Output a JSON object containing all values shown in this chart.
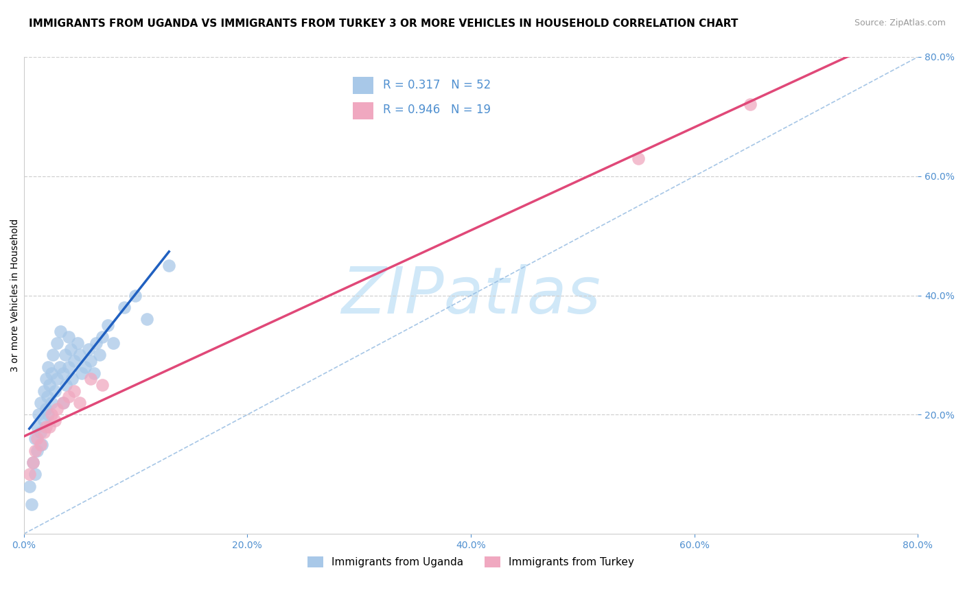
{
  "title": "IMMIGRANTS FROM UGANDA VS IMMIGRANTS FROM TURKEY 3 OR MORE VEHICLES IN HOUSEHOLD CORRELATION CHART",
  "source": "Source: ZipAtlas.com",
  "ylabel_left": "3 or more Vehicles in Household",
  "legend_bottom": [
    "Immigrants from Uganda",
    "Immigrants from Turkey"
  ],
  "R_uganda": 0.317,
  "N_uganda": 52,
  "R_turkey": 0.946,
  "N_turkey": 19,
  "xlim": [
    0.0,
    0.8
  ],
  "ylim": [
    0.0,
    0.8
  ],
  "xticks": [
    0.0,
    0.2,
    0.4,
    0.6,
    0.8
  ],
  "yticks_right": [
    0.2,
    0.4,
    0.6,
    0.8
  ],
  "xtick_labels": [
    "0.0%",
    "20.0%",
    "40.0%",
    "60.0%",
    "80.0%"
  ],
  "ytick_labels_right": [
    "20.0%",
    "40.0%",
    "60.0%",
    "80.0%"
  ],
  "color_uganda": "#a8c8e8",
  "color_turkey": "#f0a8c0",
  "line_color_uganda": "#2060c0",
  "line_color_turkey": "#e04878",
  "background_color": "#ffffff",
  "watermark_text": "ZIPatlas",
  "watermark_color": "#d0e8f8",
  "uganda_x": [
    0.005,
    0.007,
    0.008,
    0.01,
    0.01,
    0.012,
    0.012,
    0.013,
    0.015,
    0.015,
    0.016,
    0.018,
    0.018,
    0.02,
    0.02,
    0.021,
    0.022,
    0.022,
    0.023,
    0.025,
    0.025,
    0.026,
    0.028,
    0.03,
    0.03,
    0.032,
    0.033,
    0.035,
    0.035,
    0.037,
    0.038,
    0.04,
    0.04,
    0.042,
    0.043,
    0.045,
    0.048,
    0.05,
    0.052,
    0.055,
    0.058,
    0.06,
    0.063,
    0.065,
    0.068,
    0.07,
    0.075,
    0.08,
    0.09,
    0.1,
    0.11,
    0.13
  ],
  "uganda_y": [
    0.08,
    0.05,
    0.12,
    0.16,
    0.1,
    0.18,
    0.14,
    0.2,
    0.22,
    0.17,
    0.15,
    0.24,
    0.19,
    0.26,
    0.21,
    0.23,
    0.28,
    0.2,
    0.25,
    0.27,
    0.22,
    0.3,
    0.24,
    0.32,
    0.26,
    0.28,
    0.34,
    0.27,
    0.22,
    0.3,
    0.25,
    0.33,
    0.28,
    0.31,
    0.26,
    0.29,
    0.32,
    0.3,
    0.27,
    0.28,
    0.31,
    0.29,
    0.27,
    0.32,
    0.3,
    0.33,
    0.35,
    0.32,
    0.38,
    0.4,
    0.36,
    0.45
  ],
  "turkey_x": [
    0.005,
    0.008,
    0.01,
    0.012,
    0.015,
    0.018,
    0.02,
    0.023,
    0.025,
    0.028,
    0.03,
    0.035,
    0.04,
    0.045,
    0.05,
    0.06,
    0.07,
    0.55,
    0.65
  ],
  "turkey_y": [
    0.1,
    0.12,
    0.14,
    0.16,
    0.15,
    0.17,
    0.18,
    0.18,
    0.2,
    0.19,
    0.21,
    0.22,
    0.23,
    0.24,
    0.22,
    0.26,
    0.25,
    0.63,
    0.72
  ],
  "grid_color": "#d0d0d0",
  "title_fontsize": 11,
  "axis_label_fontsize": 10,
  "tick_fontsize": 10,
  "tick_color": "#5090d0"
}
